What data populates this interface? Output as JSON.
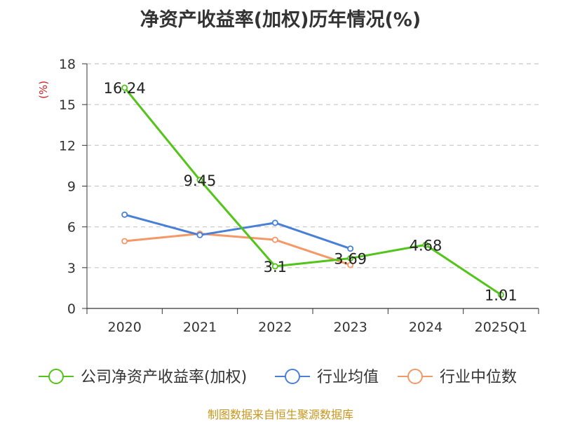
{
  "title": "净资产收益率(加权)历年情况(%)",
  "source": "制图数据来自恒生聚源数据库",
  "chart_data": {
    "type": "line",
    "title": "净资产收益率(加权)历年情况(%)",
    "ylabel": "(%)",
    "ylim": [
      0,
      18
    ],
    "yticks": [
      0,
      3,
      6,
      9,
      12,
      15,
      18
    ],
    "grid": true,
    "legend_position": "bottom",
    "categories": [
      "2020",
      "2021",
      "2022",
      "2023",
      "2024",
      "2025Q1"
    ],
    "series": [
      {
        "name": "公司净资产收益率(加权)",
        "color": "#52c41a",
        "values": [
          16.24,
          9.45,
          3.1,
          3.69,
          4.68,
          1.01
        ],
        "labels": true
      },
      {
        "name": "行业均值",
        "color": "#4a7fd8",
        "values": [
          6.9,
          5.4,
          6.3,
          4.4,
          null,
          null
        ],
        "labels": false
      },
      {
        "name": "行业中位数",
        "color": "#f59868",
        "values": [
          4.95,
          5.5,
          5.05,
          3.2,
          null,
          null
        ],
        "labels": false
      }
    ]
  }
}
